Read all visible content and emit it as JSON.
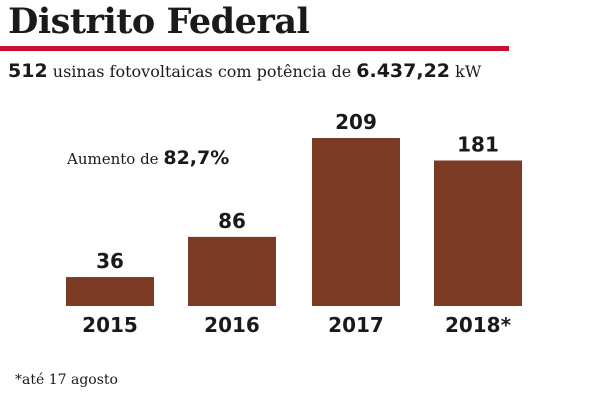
{
  "title": "Distrito Federal",
  "subtitle": {
    "count": "512",
    "text_mid": "usinas fotovoltaicas com potência de",
    "power": "6.437,22",
    "unit": "kW"
  },
  "annotation": {
    "prefix": "Aumento de",
    "value": "82,7%"
  },
  "footnote": "*até 17 agosto",
  "colors": {
    "bar": "#7a3a24",
    "rule": "#c8102e",
    "text": "#1a1a1a"
  },
  "chart_data": {
    "type": "bar",
    "categories": [
      "2015",
      "2016",
      "2017",
      "2018*"
    ],
    "values": [
      36,
      86,
      209,
      181
    ],
    "data_labels": [
      "36",
      "86",
      "209",
      "181"
    ],
    "title": "",
    "xlabel": "",
    "ylabel": "",
    "ylim": [
      0,
      209
    ],
    "grid": false,
    "legend": "none"
  }
}
